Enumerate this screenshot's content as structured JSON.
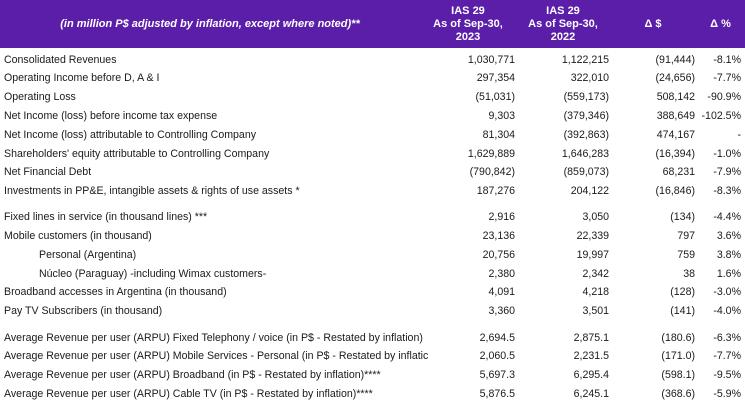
{
  "header": {
    "note": "(in million P$ adjusted by inflation, except where noted)**",
    "col1": [
      "IAS 29",
      "As of Sep-30,",
      "2023"
    ],
    "col2": [
      "IAS 29",
      "As of Sep-30,",
      "2022"
    ],
    "col3": "Δ $",
    "col4": "Δ %"
  },
  "rows": [
    {
      "label": "Consolidated Revenues",
      "v2023": "1,030,771",
      "v2022": "1,122,215",
      "delta": "(91,444)",
      "pct": "-8.1%"
    },
    {
      "label": "Operating Income before D, A & I",
      "v2023": "297,354",
      "v2022": "322,010",
      "delta": "(24,656)",
      "pct": "-7.7%"
    },
    {
      "label": "Operating Loss",
      "v2023": "(51,031)",
      "v2022": "(559,173)",
      "delta": "508,142",
      "pct": "-90.9%"
    },
    {
      "label": "Net Income (loss) before income tax expense",
      "v2023": "9,303",
      "v2022": "(379,346)",
      "delta": "388,649",
      "pct": "-102.5%"
    },
    {
      "label": "Net Income (loss) attributable to Controlling Company",
      "v2023": "81,304",
      "v2022": "(392,863)",
      "delta": "474,167",
      "pct": "-"
    },
    {
      "label": "Shareholders' equity attributable to Controlling Company",
      "v2023": "1,629,889",
      "v2022": "1,646,283",
      "delta": "(16,394)",
      "pct": "-1.0%"
    },
    {
      "label": "Net Financial Debt",
      "v2023": "(790,842)",
      "v2022": "(859,073)",
      "delta": "68,231",
      "pct": "-7.9%"
    },
    {
      "label": "Investments in PP&E, intangible assets & rights of use assets *",
      "v2023": "187,276",
      "v2022": "204,122",
      "delta": "(16,846)",
      "pct": "-8.3%"
    },
    {
      "label": "Fixed lines in service (in thousand lines) ***",
      "v2023": "2,916",
      "v2022": "3,050",
      "delta": "(134)",
      "pct": "-4.4%"
    },
    {
      "label": "Mobile customers (in thousand)",
      "v2023": "23,136",
      "v2022": "22,339",
      "delta": "797",
      "pct": "3.6%"
    },
    {
      "label": "Personal (Argentina)",
      "v2023": "20,756",
      "v2022": "19,997",
      "delta": "759",
      "pct": "3.8%"
    },
    {
      "label": "Núcleo (Paraguay) -including Wimax customers-",
      "v2023": "2,380",
      "v2022": "2,342",
      "delta": "38",
      "pct": "1.6%"
    },
    {
      "label": "Broadband accesses in Argentina (in thousand)",
      "v2023": "4,091",
      "v2022": "4,218",
      "delta": "(128)",
      "pct": "-3.0%"
    },
    {
      "label": "Pay TV Subscribers (in thousand)",
      "v2023": "3,360",
      "v2022": "3,501",
      "delta": "(141)",
      "pct": "-4.0%"
    },
    {
      "label": "Average Revenue per user (ARPU) Fixed Telephony / voice  (in P$ - Restated by inflation)",
      "v2023": "2,694.5",
      "v2022": "2,875.1",
      "delta": "(180.6)",
      "pct": "-6.3%"
    },
    {
      "label": "Average Revenue per user (ARPU) Mobile Services - Personal (in P$ - Restated by inflatic",
      "v2023": "2,060.5",
      "v2022": "2,231.5",
      "delta": "(171.0)",
      "pct": "-7.7%"
    },
    {
      "label": "Average Revenue per user (ARPU) Broadband (in P$ - Restated by inflation)****",
      "v2023": "5,697.3",
      "v2022": "6,295.4",
      "delta": "(598.1)",
      "pct": "-9.5%"
    },
    {
      "label": "Average Revenue per user (ARPU) Cable TV (in P$ - Restated by inflation)****",
      "v2023": "5,876.5",
      "v2022": "6,245.1",
      "delta": "(368.6)",
      "pct": "-5.9%"
    }
  ]
}
